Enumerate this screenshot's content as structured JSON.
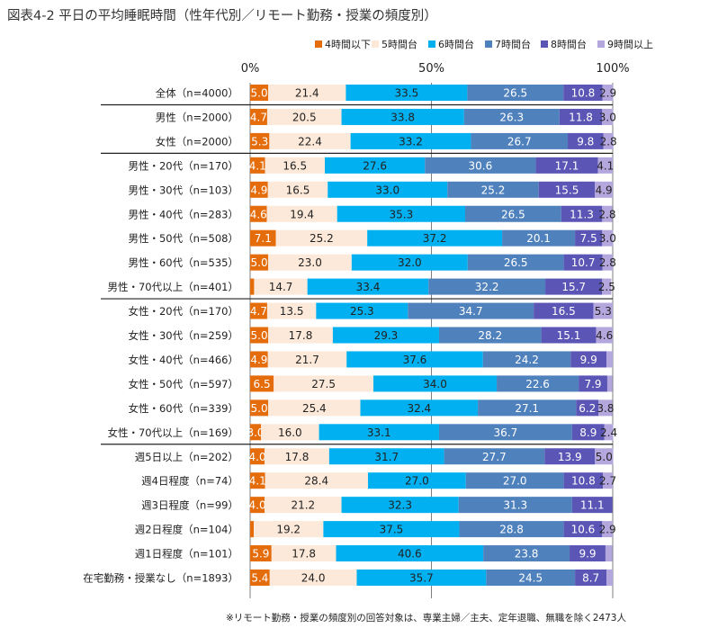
{
  "chart_data": {
    "type": "bar",
    "stacked": true,
    "orientation": "horizontal",
    "normalized_percent": true,
    "title": "図表4-2 平日の平均睡眠時間（性年代別／リモート勤務・授業の頻度別）",
    "xlabel": "",
    "ylabel": "",
    "xlim": [
      0,
      100
    ],
    "axis_tick_labels": [
      "0%",
      "50%",
      "100%"
    ],
    "legend_position": "top-right",
    "categories": [
      "全体（n=4000）",
      "男性（n=2000）",
      "女性（n=2000）",
      "男性・20代（n=170）",
      "男性・30代（n=103）",
      "男性・40代（n=283）",
      "男性・50代（n=508）",
      "男性・60代（n=535）",
      "男性・70代以上（n=401）",
      "女性・20代（n=170）",
      "女性・30代（n=259）",
      "女性・40代（n=466）",
      "女性・50代（n=597）",
      "女性・60代（n=339）",
      "女性・70代以上（n=169）",
      "週5日以上（n=202）",
      "週4日程度（n=74）",
      "週3日程度（n=99）",
      "週2日程度（n=104）",
      "週1日程度（n=101）",
      "在宅勤務・授業なし（n=1893）"
    ],
    "group_separators_after": [
      0,
      2,
      8,
      14
    ],
    "series": [
      {
        "name": "4時間以下",
        "color": "#E46C0A",
        "label_color": "#ffffff",
        "values": [
          5.0,
          4.7,
          5.3,
          4.1,
          4.9,
          4.6,
          7.1,
          5.0,
          1.1,
          4.7,
          5.0,
          4.9,
          6.5,
          5.0,
          3.0,
          4.0,
          4.1,
          4.0,
          1.0,
          5.9,
          5.4
        ],
        "labels": [
          "5.0",
          "4.7",
          "5.3",
          "4.1",
          "4.9",
          "4.6",
          "7.1",
          "5.0",
          "",
          "4.7",
          "5.0",
          "4.9",
          "6.5",
          "5.0",
          "3.0",
          "4.0",
          "4.1",
          "4.0",
          "",
          "5.9",
          "5.4"
        ]
      },
      {
        "name": "5時間台",
        "color": "#FDE9D9",
        "label_color": "#222222",
        "values": [
          21.4,
          20.5,
          22.4,
          16.5,
          16.5,
          19.4,
          25.2,
          23.0,
          14.7,
          13.5,
          17.8,
          21.7,
          27.5,
          25.4,
          16.0,
          17.8,
          28.4,
          21.2,
          19.2,
          17.8,
          24.0
        ],
        "labels": [
          "21.4",
          "20.5",
          "22.4",
          "16.5",
          "16.5",
          "19.4",
          "25.2",
          "23.0",
          "14.7",
          "13.5",
          "17.8",
          "21.7",
          "27.5",
          "25.4",
          "16.0",
          "17.8",
          "28.4",
          "21.2",
          "19.2",
          "17.8",
          "24.0"
        ]
      },
      {
        "name": "6時間台",
        "color": "#00B0F0",
        "label_color": "#222222",
        "values": [
          33.5,
          33.8,
          33.2,
          27.6,
          33.0,
          35.3,
          37.2,
          32.0,
          33.4,
          25.3,
          29.3,
          37.6,
          34.0,
          32.4,
          33.1,
          31.7,
          27.0,
          32.3,
          37.5,
          40.6,
          35.7
        ],
        "labels": [
          "33.5",
          "33.8",
          "33.2",
          "27.6",
          "33.0",
          "35.3",
          "37.2",
          "32.0",
          "33.4",
          "25.3",
          "29.3",
          "37.6",
          "34.0",
          "32.4",
          "33.1",
          "31.7",
          "27.0",
          "32.3",
          "37.5",
          "40.6",
          "35.7"
        ]
      },
      {
        "name": "7時間台",
        "color": "#4F81BD",
        "label_color": "#ffffff",
        "values": [
          26.5,
          26.3,
          26.7,
          30.6,
          25.2,
          26.5,
          20.1,
          26.5,
          32.2,
          34.7,
          28.2,
          24.2,
          22.6,
          27.1,
          36.7,
          27.7,
          27.0,
          31.3,
          28.8,
          23.8,
          24.5
        ],
        "labels": [
          "26.5",
          "26.3",
          "26.7",
          "30.6",
          "25.2",
          "26.5",
          "20.1",
          "26.5",
          "32.2",
          "34.7",
          "28.2",
          "24.2",
          "22.6",
          "27.1",
          "36.7",
          "27.7",
          "27.0",
          "31.3",
          "28.8",
          "23.8",
          "24.5"
        ]
      },
      {
        "name": "8時間台",
        "color": "#5B55B6",
        "label_color": "#ffffff",
        "values": [
          10.8,
          11.8,
          9.8,
          17.1,
          15.5,
          11.3,
          7.5,
          10.7,
          15.7,
          16.5,
          15.1,
          9.9,
          7.9,
          6.2,
          8.9,
          13.9,
          10.8,
          11.1,
          10.6,
          9.9,
          8.7
        ],
        "labels": [
          "10.8",
          "11.8",
          "9.8",
          "17.1",
          "15.5",
          "11.3",
          "7.5",
          "10.7",
          "15.7",
          "16.5",
          "15.1",
          "9.9",
          "7.9",
          "6.2",
          "8.9",
          "13.9",
          "10.8",
          "11.1",
          "10.6",
          "9.9",
          "8.7"
        ]
      },
      {
        "name": "9時間以上",
        "color": "#B4A7DE",
        "label_color": "#222222",
        "values": [
          2.9,
          3.0,
          2.8,
          4.1,
          4.9,
          2.8,
          3.0,
          2.8,
          2.5,
          5.3,
          4.6,
          1.7,
          1.4,
          3.8,
          2.4,
          5.0,
          2.7,
          0.0,
          2.9,
          1.9,
          1.7
        ],
        "labels": [
          "2.9",
          "3.0",
          "2.8",
          "4.1",
          "4.9",
          "2.8",
          "3.0",
          "2.8",
          "2.5",
          "5.3",
          "4.6",
          "",
          "",
          "3.8",
          "2.4",
          "5.0",
          "2.7",
          "",
          "2.9",
          "",
          ""
        ]
      }
    ]
  },
  "footnote": "※リモート勤務・授業の頻度別の回答対象は、専業主婦／主夫、定年退職、無職を除く2473人"
}
